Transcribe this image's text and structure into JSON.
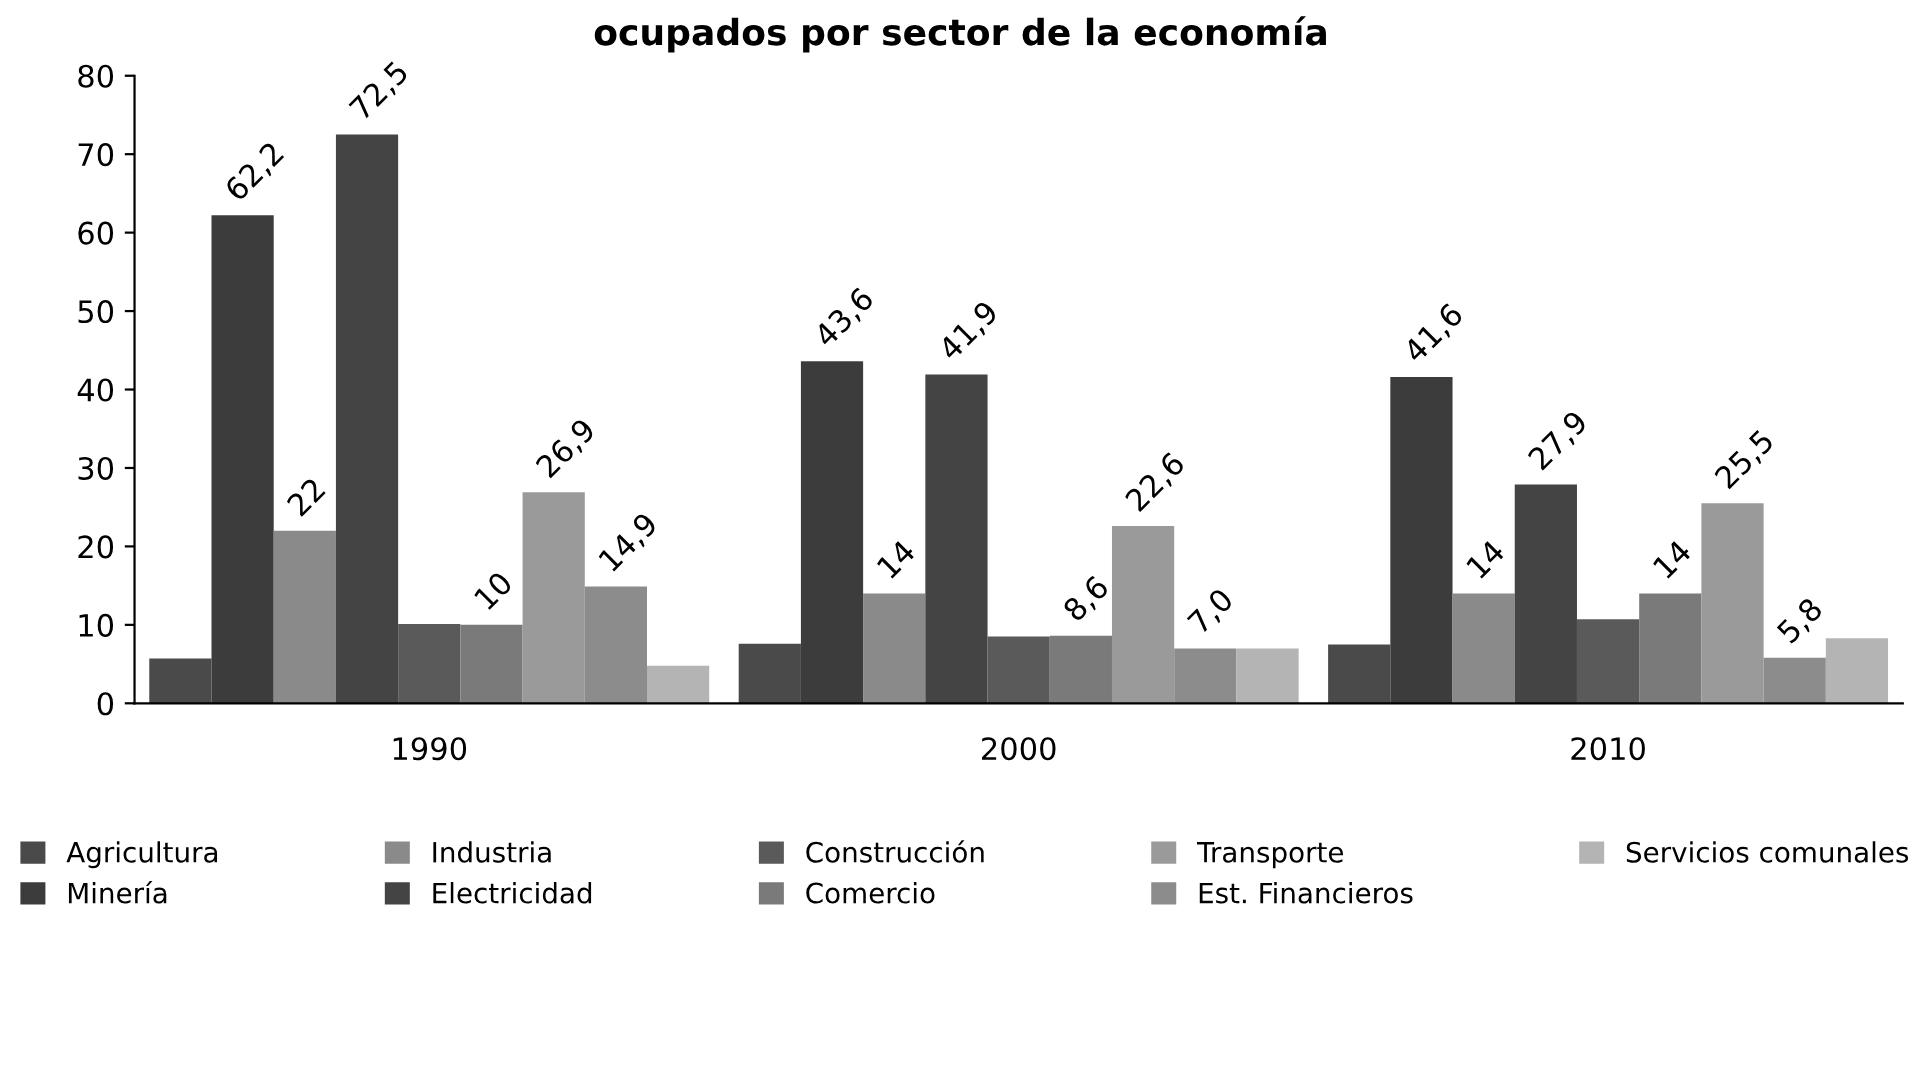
{
  "chart_data": {
    "type": "bar",
    "title": "ocupados por sector de la economía",
    "categories": [
      "1990",
      "2000",
      "2010"
    ],
    "ylim": [
      0,
      80
    ],
    "yticks": [
      0,
      10,
      20,
      30,
      40,
      50,
      60,
      70,
      80
    ],
    "grid": false,
    "legend": "bottom",
    "series": [
      {
        "name": "Agricultura",
        "color": "#4a4a4a",
        "values": [
          5.7,
          7.6,
          7.5
        ],
        "value_labels": [
          null,
          null,
          null
        ]
      },
      {
        "name": "Minería",
        "color": "#3c3c3c",
        "values": [
          62.2,
          43.6,
          41.6
        ],
        "value_labels": [
          "62,2",
          "43,6",
          "41,6"
        ]
      },
      {
        "name": "Industria",
        "color": "#8a8a8a",
        "values": [
          22,
          14,
          14
        ],
        "value_labels": [
          "22",
          "14",
          "14"
        ]
      },
      {
        "name": "Electricidad",
        "color": "#444444",
        "values": [
          72.5,
          41.9,
          27.9
        ],
        "value_labels": [
          "72,5",
          "41,9",
          "27,9"
        ]
      },
      {
        "name": "Construcción",
        "color": "#5a5a5a",
        "values": [
          10.1,
          8.5,
          10.7
        ],
        "value_labels": [
          null,
          null,
          null
        ]
      },
      {
        "name": "Comercio",
        "color": "#7a7a7a",
        "values": [
          10,
          8.6,
          14
        ],
        "value_labels": [
          "10",
          "8,6",
          "14"
        ]
      },
      {
        "name": "Transporte",
        "color": "#9a9a9a",
        "values": [
          26.9,
          22.6,
          25.5
        ],
        "value_labels": [
          "26,9",
          "22,6",
          "25,5"
        ]
      },
      {
        "name": "Est. Financieros",
        "color": "#8c8c8c",
        "values": [
          14.9,
          7.0,
          5.8
        ],
        "value_labels": [
          "14,9",
          "7,0",
          "5,8"
        ]
      },
      {
        "name": "Servicios comunales",
        "color": "#b4b4b4",
        "values": [
          4.8,
          7.0,
          8.3
        ],
        "value_labels": [
          null,
          null,
          null
        ]
      }
    ]
  }
}
